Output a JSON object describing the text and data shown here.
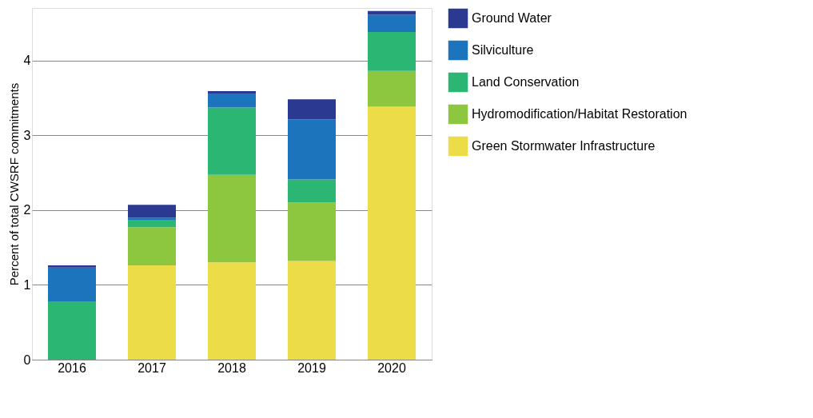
{
  "chart_data": {
    "type": "bar",
    "stacked": true,
    "ylabel": "Percent of total CWSRF commitments",
    "categories": [
      "2016",
      "2017",
      "2018",
      "2019",
      "2020"
    ],
    "series": [
      {
        "name": "Green Stormwater Infrastructure",
        "color": "#ecdc47",
        "values": [
          null,
          1.26,
          1.3,
          1.32,
          3.38
        ]
      },
      {
        "name": "Hydromodification/Habitat Restoration",
        "color": "#8dc63f",
        "values": [
          null,
          0.51,
          1.17,
          0.78,
          0.48
        ]
      },
      {
        "name": "Land Conservation",
        "color": "#2bb673",
        "values": [
          0.78,
          0.1,
          0.9,
          0.31,
          0.52
        ]
      },
      {
        "name": "Silviculture",
        "color": "#1c75bc",
        "values": [
          0.45,
          0.03,
          0.18,
          0.8,
          0.23
        ]
      },
      {
        "name": "Ground Water",
        "color": "#2b3990",
        "values": [
          0.03,
          0.17,
          0.04,
          0.27,
          0.05
        ]
      }
    ],
    "ylim": [
      0,
      4.7
    ],
    "yticks": [
      0,
      1,
      2,
      3,
      4
    ],
    "grid": "y",
    "legend": "right"
  }
}
